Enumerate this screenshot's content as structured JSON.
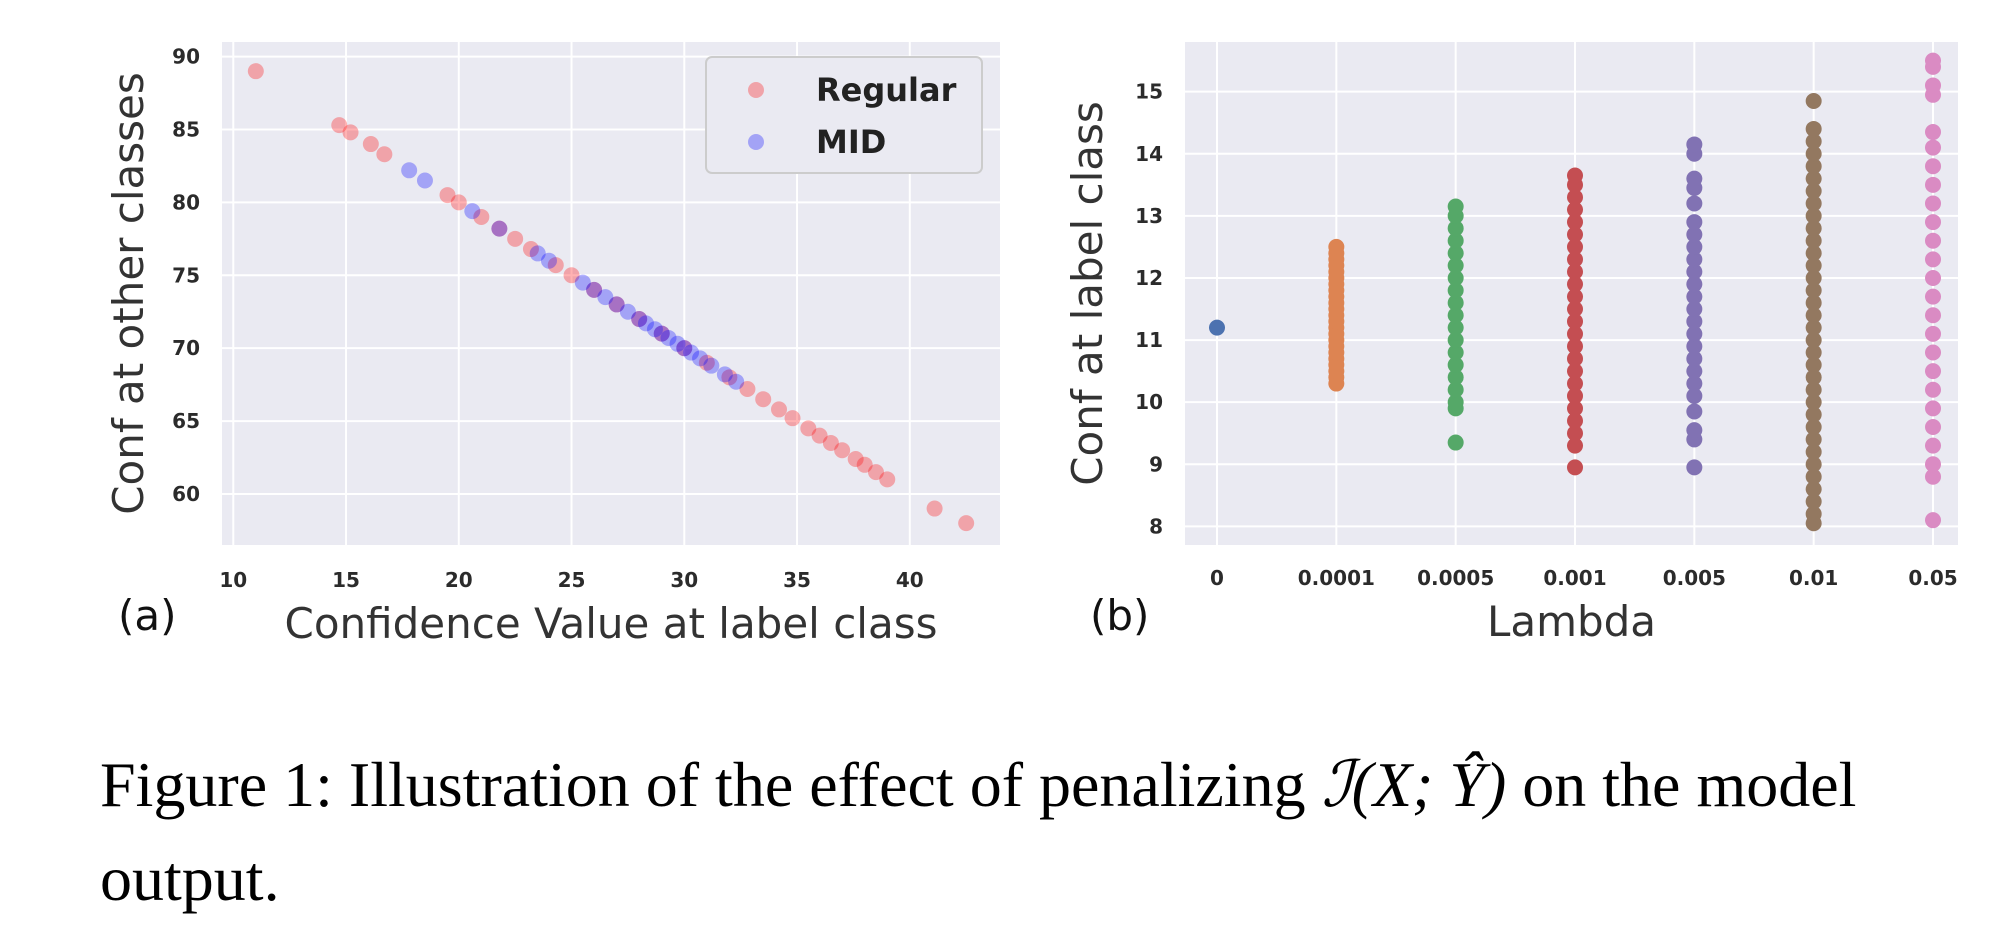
{
  "panels": {
    "a": "(a)",
    "b": "(b)"
  },
  "caption": {
    "prefix": "Figure 1: Illustration of the effect of penalizing",
    "math": "ℐ(X; Ŷ)",
    "suffix": "on the model output."
  },
  "colors": {
    "background": "#eaeaf2",
    "grid": "#ffffff",
    "regular": "#ff0000",
    "mid": "#0000ff"
  },
  "chart_data": [
    {
      "type": "scatter",
      "panel": "(a)",
      "title": "",
      "xlabel": "Confidence Value at label class",
      "ylabel": "Conf at other classes",
      "xlim": [
        9.5,
        44
      ],
      "ylim": [
        56.5,
        91
      ],
      "xticks": [
        10,
        15,
        20,
        25,
        30,
        35,
        40
      ],
      "yticks": [
        60,
        65,
        70,
        75,
        80,
        85,
        90
      ],
      "grid": true,
      "legend": "top-right",
      "marker_alpha": 0.3,
      "series": [
        {
          "name": "Regular",
          "color": "#ff0000",
          "points": [
            [
              11,
              89
            ],
            [
              14.7,
              85.3
            ],
            [
              15.2,
              84.8
            ],
            [
              16.1,
              84
            ],
            [
              16.7,
              83.3
            ],
            [
              19.5,
              80.5
            ],
            [
              20,
              80
            ],
            [
              21,
              79
            ],
            [
              21.8,
              78.2
            ],
            [
              22.5,
              77.5
            ],
            [
              23.2,
              76.8
            ],
            [
              24.3,
              75.7
            ],
            [
              25,
              75
            ],
            [
              26,
              74
            ],
            [
              27,
              73
            ],
            [
              28,
              72
            ],
            [
              29,
              71
            ],
            [
              30,
              70
            ],
            [
              31,
              69
            ],
            [
              32,
              68
            ],
            [
              32.8,
              67.2
            ],
            [
              33.5,
              66.5
            ],
            [
              34.2,
              65.8
            ],
            [
              34.8,
              65.2
            ],
            [
              35.5,
              64.5
            ],
            [
              36,
              64
            ],
            [
              36.5,
              63.5
            ],
            [
              37,
              63
            ],
            [
              37.6,
              62.4
            ],
            [
              38,
              62
            ],
            [
              38.5,
              61.5
            ],
            [
              39,
              61
            ],
            [
              41.1,
              59
            ],
            [
              42.5,
              58
            ]
          ]
        },
        {
          "name": "MID",
          "color": "#0000ff",
          "points": [
            [
              17.8,
              82.2
            ],
            [
              18.5,
              81.5
            ],
            [
              20.6,
              79.4
            ],
            [
              21.8,
              78.2
            ],
            [
              23.5,
              76.5
            ],
            [
              24,
              76
            ],
            [
              25.5,
              74.5
            ],
            [
              26,
              74
            ],
            [
              26.5,
              73.5
            ],
            [
              27,
              73
            ],
            [
              27.5,
              72.5
            ],
            [
              28,
              72
            ],
            [
              28.3,
              71.7
            ],
            [
              28.7,
              71.3
            ],
            [
              29,
              71
            ],
            [
              29.3,
              70.7
            ],
            [
              29.7,
              70.3
            ],
            [
              30,
              70
            ],
            [
              30.3,
              69.7
            ],
            [
              30.7,
              69.3
            ],
            [
              31.2,
              68.8
            ],
            [
              31.8,
              68.2
            ],
            [
              32.3,
              67.7
            ]
          ]
        }
      ]
    },
    {
      "type": "scatter",
      "panel": "(b)",
      "title": "",
      "xlabel": "Lambda",
      "ylabel": "Conf at label class",
      "categories": [
        "0",
        "0.0001",
        "0.0005",
        "0.001",
        "0.005",
        "0.01",
        "0.05"
      ],
      "ylim": [
        7.7,
        15.8
      ],
      "yticks": [
        8,
        9,
        10,
        11,
        12,
        13,
        14,
        15
      ],
      "grid": true,
      "series": [
        {
          "category": "0",
          "color": "#4c72b0",
          "values": [
            11.2
          ]
        },
        {
          "category": "0.0001",
          "color": "#dd8452",
          "values": [
            10.3,
            10.4,
            10.5,
            10.6,
            10.7,
            10.8,
            10.9,
            11.0,
            11.1,
            11.2,
            11.3,
            11.4,
            11.5,
            11.6,
            11.7,
            11.8,
            11.9,
            12.0,
            12.1,
            12.2,
            12.3,
            12.4,
            12.5
          ]
        },
        {
          "category": "0.0005",
          "color": "#55a868",
          "values": [
            9.35,
            9.9,
            10.0,
            10.2,
            10.4,
            10.6,
            10.8,
            11.0,
            11.2,
            11.4,
            11.6,
            11.8,
            12.0,
            12.2,
            12.4,
            12.6,
            12.8,
            13.0,
            13.15
          ]
        },
        {
          "category": "0.001",
          "color": "#c44e52",
          "values": [
            8.95,
            9.3,
            9.5,
            9.7,
            9.9,
            10.1,
            10.3,
            10.5,
            10.7,
            10.9,
            11.1,
            11.3,
            11.5,
            11.7,
            11.9,
            12.1,
            12.3,
            12.5,
            12.7,
            12.9,
            13.1,
            13.3,
            13.5,
            13.65
          ]
        },
        {
          "category": "0.005",
          "color": "#8172b3",
          "values": [
            8.95,
            9.4,
            9.55,
            9.85,
            10.1,
            10.3,
            10.5,
            10.7,
            10.9,
            11.1,
            11.3,
            11.5,
            11.7,
            11.9,
            12.1,
            12.3,
            12.5,
            12.7,
            12.9,
            13.2,
            13.45,
            13.6,
            14.0,
            14.15
          ]
        },
        {
          "category": "0.01",
          "color": "#937860",
          "values": [
            8.05,
            8.2,
            8.4,
            8.6,
            8.8,
            9.0,
            9.2,
            9.4,
            9.6,
            9.8,
            10.0,
            10.2,
            10.4,
            10.6,
            10.8,
            11.0,
            11.2,
            11.4,
            11.6,
            11.8,
            12.0,
            12.2,
            12.4,
            12.6,
            12.8,
            13.0,
            13.2,
            13.4,
            13.6,
            13.8,
            14.0,
            14.2,
            14.4,
            14.85
          ]
        },
        {
          "category": "0.05",
          "color": "#da8bc3",
          "values": [
            8.1,
            8.8,
            9.0,
            9.3,
            9.6,
            9.9,
            10.2,
            10.5,
            10.8,
            11.1,
            11.4,
            11.7,
            12.0,
            12.3,
            12.6,
            12.9,
            13.2,
            13.5,
            13.8,
            14.1,
            14.35,
            14.95,
            15.1,
            15.4,
            15.5
          ]
        }
      ]
    }
  ]
}
